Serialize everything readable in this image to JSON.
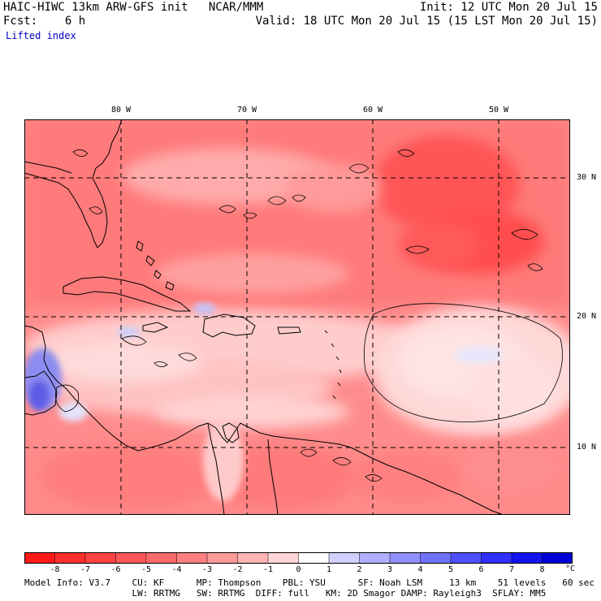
{
  "header": {
    "model_line": "HAIC-HIWC 13km ARW-GFS init   NCAR/MMM",
    "init_line": "Init: 12 UTC Mon 20 Jul 15",
    "fcst_line": "Fcst:    6 h",
    "valid_line": "Valid: 18 UTC Mon 20 Jul 15 (15 LST Mon 20 Jul 15)",
    "field_name": "Lifted index"
  },
  "map": {
    "lon_labels": [
      "80 W",
      "70 W",
      "60 W",
      "50 W"
    ],
    "lat_labels": [
      "30 N",
      "20 N",
      "10 N"
    ],
    "gridline_color": "#000000",
    "land_outline_color": "#000000"
  },
  "colorbar": {
    "tick_labels": [
      "-8",
      "-7",
      "-6",
      "-5",
      "-4",
      "-3",
      "-2",
      "-1",
      "0",
      "1",
      "2",
      "3",
      "4",
      "5",
      "6",
      "7",
      "8"
    ],
    "unit": "°C",
    "colors": [
      "#ff1a1a",
      "#ff2e2e",
      "#ff4242",
      "#ff5757",
      "#ff6b6b",
      "#ff8080",
      "#ff9a9a",
      "#ffb3b3",
      "#ffd6d6",
      "#ffffff",
      "#d0d0ff",
      "#b0b0ff",
      "#9090ff",
      "#7070ff",
      "#5050ff",
      "#3030ff",
      "#1414f0",
      "#0000d8"
    ]
  },
  "footer": {
    "line1": "Model Info: V3.7    CU: KF      MP: Thompson    PBL: YSU      SF: Noah LSM     13 km    51 levels   60 sec",
    "line2": "                    LW: RRTMG   SW: RRTMG  DIFF: full   KM: 2D Smagor DAMP: Rayleigh3  SFLAY: MM5"
  }
}
